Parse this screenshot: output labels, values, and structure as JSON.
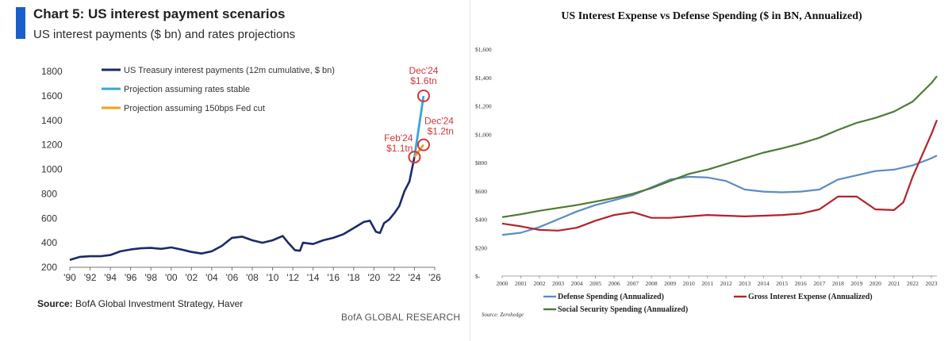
{
  "colors": {
    "accent": "#1a5fc9",
    "history": "#1c2a6b",
    "stable": "#3ba3db",
    "cut": "#f2a01d",
    "annot": "#d2363b",
    "defense": "#5b8cc6",
    "interest": "#b3232b",
    "social": "#4e7a35"
  },
  "left": {
    "title": "Chart 5: US interest payment scenarios",
    "subtitle": "US interest payments ($ bn) and rates projections",
    "source_label": "Source:",
    "source_text": " BofA Global Investment Strategy, Haver",
    "branding": "BofA GLOBAL RESEARCH"
  },
  "right": {
    "source": "Source: Zerohedge"
  },
  "chart_data": [
    {
      "type": "line",
      "title": "",
      "xlim": [
        1990,
        2026
      ],
      "ylim": [
        200,
        1800
      ],
      "x_ticks": [
        "'90",
        "'92",
        "'94",
        "'96",
        "'98",
        "'00",
        "'02",
        "'04",
        "'06",
        "'08",
        "'10",
        "'12",
        "'14",
        "'16",
        "'18",
        "'20",
        "'22",
        "'24",
        "'26"
      ],
      "y_ticks": [
        200,
        400,
        600,
        800,
        1000,
        1200,
        1400,
        1600,
        1800
      ],
      "legend_position": "top-left",
      "series": [
        {
          "name": "US Treasury interest payments (12m cumulative, $ bn)",
          "x": [
            1990,
            1991,
            1992,
            1993,
            1994,
            1995,
            1996,
            1997,
            1998,
            1999,
            2000,
            2001,
            2002,
            2003,
            2004,
            2005,
            2006,
            2007,
            2008,
            2009,
            2010,
            2011,
            2011.6,
            2012.2,
            2012.7,
            2013,
            2014,
            2015,
            2016,
            2017,
            2018,
            2019,
            2019.6,
            2020.2,
            2020.6,
            2021,
            2021.5,
            2022,
            2022.5,
            2023,
            2023.5,
            2024
          ],
          "y": [
            260,
            285,
            290,
            290,
            300,
            330,
            345,
            355,
            358,
            350,
            362,
            345,
            325,
            312,
            330,
            375,
            440,
            450,
            420,
            400,
            420,
            455,
            395,
            340,
            335,
            400,
            390,
            420,
            440,
            470,
            520,
            570,
            580,
            490,
            480,
            560,
            590,
            640,
            700,
            820,
            900,
            1100
          ]
        },
        {
          "name": "Projection assuming rates stable",
          "x": [
            2024,
            2024.9
          ],
          "y": [
            1100,
            1600
          ]
        },
        {
          "name": "Projection assuming 150bps Fed cut",
          "x": [
            2024,
            2024.9
          ],
          "y": [
            1100,
            1200
          ]
        }
      ],
      "annotations": [
        {
          "label": "Feb'24",
          "value": "$1.1tn",
          "x": 2024,
          "y": 1100
        },
        {
          "label": "Dec'24",
          "value": "$1.6tn",
          "x": 2024.9,
          "y": 1600
        },
        {
          "label": "Dec'24",
          "value": "$1.2tn",
          "x": 2024.9,
          "y": 1200
        }
      ]
    },
    {
      "type": "line",
      "title": "US Interest Expense vs Defense Spending ($ in BN, Annualized)",
      "xlim": [
        2000,
        2023.3
      ],
      "ylim": [
        0,
        1600
      ],
      "x_ticks": [
        "2000",
        "2001",
        "2002",
        "2003",
        "2004",
        "2005",
        "2006",
        "2007",
        "2008",
        "2009",
        "2010",
        "2011",
        "2012",
        "2013",
        "2014",
        "2015",
        "2016",
        "2017",
        "2018",
        "2019",
        "2020",
        "2021",
        "2022",
        "2023"
      ],
      "y_ticks": [
        "$-",
        "$200",
        "$400",
        "$600",
        "$800",
        "$1,000",
        "$1,200",
        "$1,400",
        "$1,600"
      ],
      "legend_position": "bottom",
      "series": [
        {
          "name": "Defense Spending (Annualized)",
          "x": [
            2000,
            2001,
            2002,
            2003,
            2004,
            2005,
            2006,
            2007,
            2008,
            2009,
            2010,
            2011,
            2012,
            2013,
            2014,
            2015,
            2016,
            2017,
            2018,
            2019,
            2020,
            2021,
            2022,
            2023,
            2023.3
          ],
          "y": [
            290,
            305,
            345,
            400,
            455,
            500,
            535,
            570,
            625,
            680,
            700,
            695,
            670,
            610,
            595,
            590,
            595,
            610,
            680,
            710,
            740,
            750,
            780,
            830,
            850
          ]
        },
        {
          "name": "Gross Interest Expense (Annualized)",
          "x": [
            2000,
            2001,
            2002,
            2003,
            2004,
            2005,
            2006,
            2007,
            2008,
            2009,
            2010,
            2011,
            2012,
            2013,
            2014,
            2015,
            2016,
            2017,
            2018,
            2019,
            2020,
            2021,
            2021.5,
            2022,
            2022.5,
            2023,
            2023.3
          ],
          "y": [
            370,
            350,
            325,
            320,
            340,
            390,
            430,
            450,
            410,
            410,
            420,
            430,
            425,
            420,
            425,
            430,
            440,
            470,
            560,
            560,
            470,
            465,
            520,
            700,
            850,
            1000,
            1100
          ]
        },
        {
          "name": "Social Security Spending (Annualized)",
          "x": [
            2000,
            2001,
            2002,
            2003,
            2004,
            2005,
            2006,
            2007,
            2008,
            2009,
            2010,
            2011,
            2012,
            2013,
            2014,
            2015,
            2016,
            2017,
            2018,
            2019,
            2020,
            2021,
            2022,
            2023,
            2023.3
          ],
          "y": [
            415,
            435,
            460,
            480,
            500,
            525,
            550,
            580,
            620,
            670,
            720,
            750,
            790,
            830,
            870,
            900,
            935,
            975,
            1030,
            1080,
            1115,
            1160,
            1230,
            1360,
            1410
          ]
        }
      ]
    }
  ]
}
